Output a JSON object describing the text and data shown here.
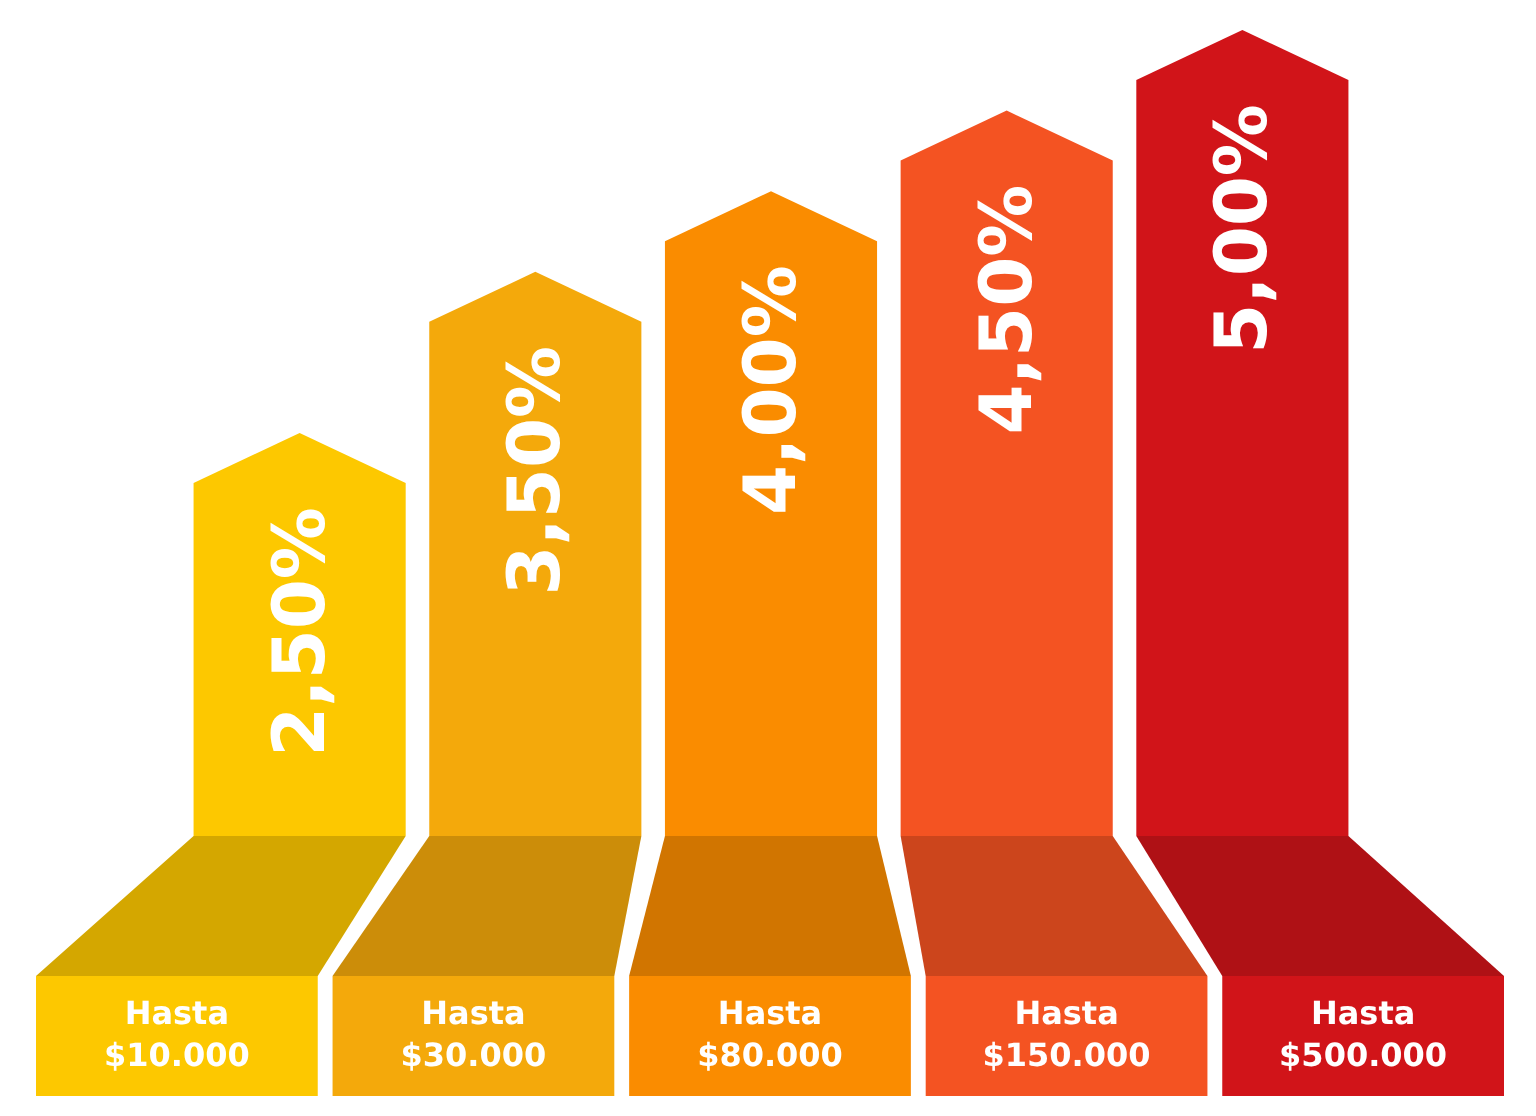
{
  "chart_data": {
    "type": "bar",
    "categories": [
      "Hasta $10.000",
      "Hasta $30.000",
      "Hasta $80.000",
      "Hasta $150.000",
      "Hasta $500.000"
    ],
    "values": [
      2.5,
      3.5,
      4.0,
      4.5,
      5.0
    ],
    "value_labels": [
      "2,50%",
      "3,50%",
      "4,00%",
      "4,50%",
      "5,00%"
    ],
    "colors": [
      "#fdc800",
      "#f4a90b",
      "#fa8c00",
      "#f45322",
      "#d11419"
    ]
  }
}
